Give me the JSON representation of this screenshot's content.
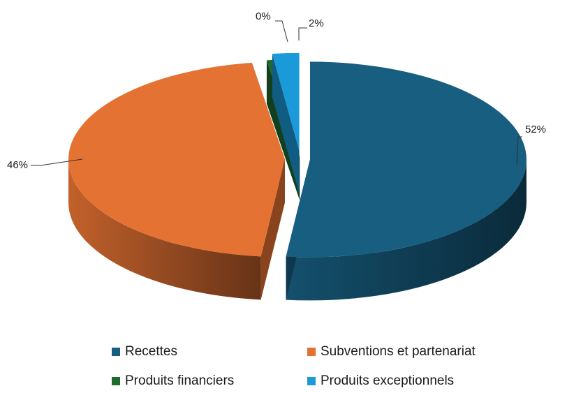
{
  "chart_data": {
    "type": "pie",
    "style": "3d-exploded",
    "series": [
      {
        "name": "Recettes",
        "value": 52,
        "label": "52%",
        "color": "#175e80"
      },
      {
        "name": "Subventions et partenariat",
        "value": 46,
        "label": "46%",
        "color": "#e47232"
      },
      {
        "name": "Produits financiers",
        "value": 0,
        "label": "0%",
        "color": "#1e6b2e"
      },
      {
        "name": "Produits exceptionnels",
        "value": 2,
        "label": "2%",
        "color": "#1a9ad8"
      }
    ],
    "legend_position": "bottom"
  }
}
